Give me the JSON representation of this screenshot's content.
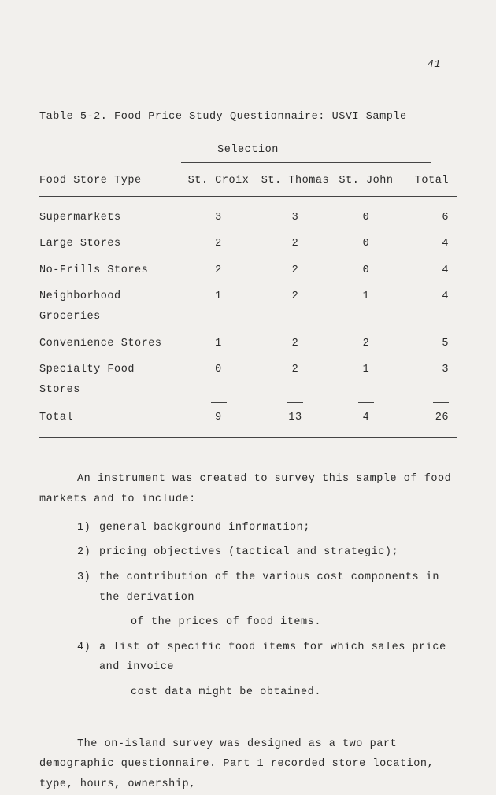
{
  "page_number": "41",
  "table": {
    "caption": "Table 5-2.  Food Price Study Questionnaire:  USVI Sample",
    "selection_label": "Selection",
    "columns": {
      "type": "Food Store Type",
      "c1": "St. Croix",
      "c2": "St. Thomas",
      "c3": "St. John",
      "total": "Total"
    },
    "rows": [
      {
        "type": "Supermarkets",
        "c1": "3",
        "c2": "3",
        "c3": "0",
        "tot": "6"
      },
      {
        "type": "Large Stores",
        "c1": "2",
        "c2": "2",
        "c3": "0",
        "tot": "4"
      },
      {
        "type": "No-Frills Stores",
        "c1": "2",
        "c2": "2",
        "c3": "0",
        "tot": "4"
      },
      {
        "type": "Neighborhood Groceries",
        "c1": "1",
        "c2": "2",
        "c3": "1",
        "tot": "4"
      },
      {
        "type": "Convenience Stores",
        "c1": "1",
        "c2": "2",
        "c3": "2",
        "tot": "5"
      },
      {
        "type": "Specialty Food Stores",
        "c1": "0",
        "c2": "2",
        "c3": "1",
        "tot": "3"
      }
    ],
    "total_row": {
      "type": "Total",
      "c1": "9",
      "c2": "13",
      "c3": "4",
      "tot": "26"
    }
  },
  "paragraph1": "An instrument was created to survey this sample of food markets and to include:",
  "list": [
    {
      "num": "1)",
      "text": "general background information;"
    },
    {
      "num": "2)",
      "text": "pricing objectives (tactical and strategic);"
    },
    {
      "num": "3)",
      "text": "the contribution of the various cost components in the derivation",
      "sub": "of the prices of food items."
    },
    {
      "num": "4)",
      "text": "a list of specific food items for which sales price and invoice",
      "sub": "cost data might be obtained."
    }
  ],
  "paragraph2": "The on-island survey was designed as a two part demographic questionnaire.  Part 1 recorded store location, type, hours, ownership,"
}
